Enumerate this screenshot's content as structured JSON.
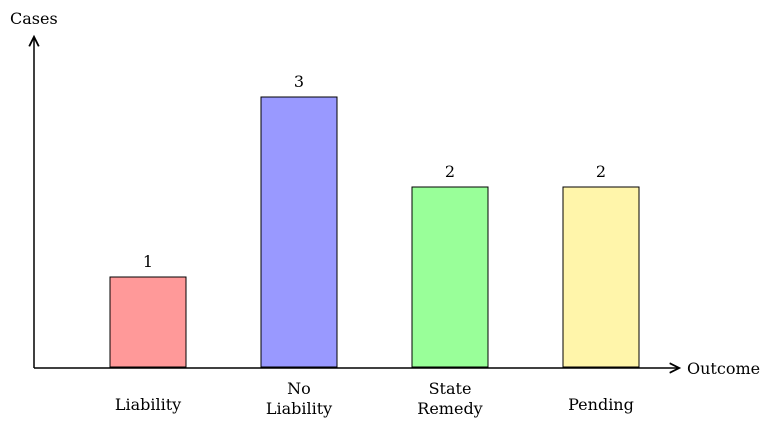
{
  "chart_data": {
    "type": "bar",
    "xlabel": "Outcome",
    "ylabel": "Cases",
    "categories": [
      [
        "Liability"
      ],
      [
        "No",
        "Liability"
      ],
      [
        "State",
        "Remedy"
      ],
      [
        "Pending"
      ]
    ],
    "bars": [
      {
        "value": 1,
        "label": "1",
        "color": "#ff9999"
      },
      {
        "value": 3,
        "label": "3",
        "color": "#9999ff"
      },
      {
        "value": 2,
        "label": "2",
        "color": "#99ff99"
      },
      {
        "value": 2,
        "label": "2",
        "color": "#fff5aa"
      }
    ]
  }
}
